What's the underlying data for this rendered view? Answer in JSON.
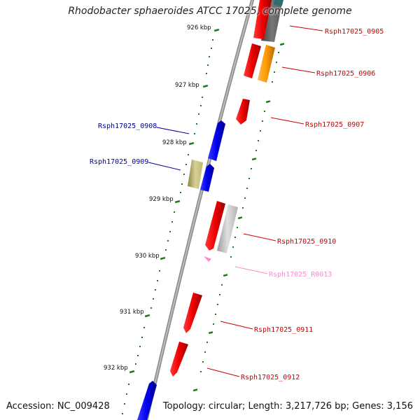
{
  "title": "Rhodobacter sphaeroides ATCC 17025, complete genome",
  "footer": {
    "accession": "Accession: NC_009428",
    "summary": "Topology: circular; Length: 3,217,726 bp; Genes: 3,156"
  },
  "tick_labels": [
    "926 kbp",
    "927 kbp",
    "928 kbp",
    "929 kbp",
    "930 kbp",
    "931 kbp",
    "932 kbp"
  ],
  "genes": [
    {
      "name": "Rsph17025_0905",
      "color": "#cc0000"
    },
    {
      "name": "Rsph17025_0906",
      "color": "#cc0000"
    },
    {
      "name": "Rsph17025_0907",
      "color": "#cc0000"
    },
    {
      "name": "Rsph17025_0908",
      "color": "#000099"
    },
    {
      "name": "Rsph17025_0909",
      "color": "#000099"
    },
    {
      "name": "Rsph17025_0910",
      "color": "#cc0000"
    },
    {
      "name": "Rsph17025_R0013",
      "color": "#ff88cc"
    },
    {
      "name": "Rsph17025_0911",
      "color": "#cc0000"
    },
    {
      "name": "Rsph17025_0912",
      "color": "#cc0000"
    }
  ],
  "colors": {
    "forward_gene": "#ff0000",
    "reverse_gene": "#0000ff",
    "rna_gene": "#ff88cc",
    "highlight_orange": "#ff9900",
    "highlight_khaki": "#bdb76b",
    "highlight_gray": "#bbbbbb",
    "tick": "#1a7a1a",
    "backbone": "#808080"
  }
}
